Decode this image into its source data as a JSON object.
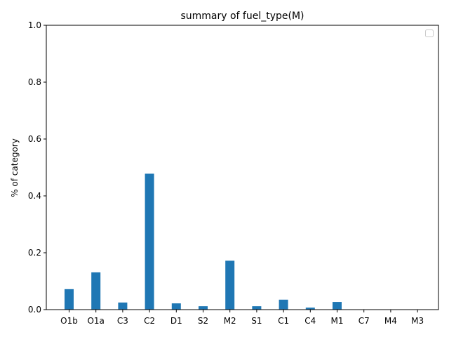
{
  "chart_data": {
    "type": "bar",
    "title": "summary of fuel_type(M)",
    "xlabel": "",
    "ylabel": "% of category",
    "categories": [
      "O1b",
      "O1a",
      "C3",
      "C2",
      "D1",
      "S2",
      "M2",
      "S1",
      "C1",
      "C4",
      "M1",
      "C7",
      "M4",
      "M3"
    ],
    "values": [
      0.072,
      0.131,
      0.025,
      0.478,
      0.022,
      0.012,
      0.172,
      0.012,
      0.035,
      0.007,
      0.027,
      0.0,
      0.0,
      0.0
    ],
    "ylim": [
      0,
      1.0
    ],
    "yticks": [
      0.0,
      0.2,
      0.4,
      0.6,
      0.8,
      1.0
    ],
    "ytick_labels": [
      "0.0",
      "0.2",
      "0.4",
      "0.6",
      "0.8",
      "1.0"
    ],
    "bar_color": "#1f77b4",
    "grid": false,
    "legend": {
      "placement": "top-right",
      "entries": []
    }
  }
}
